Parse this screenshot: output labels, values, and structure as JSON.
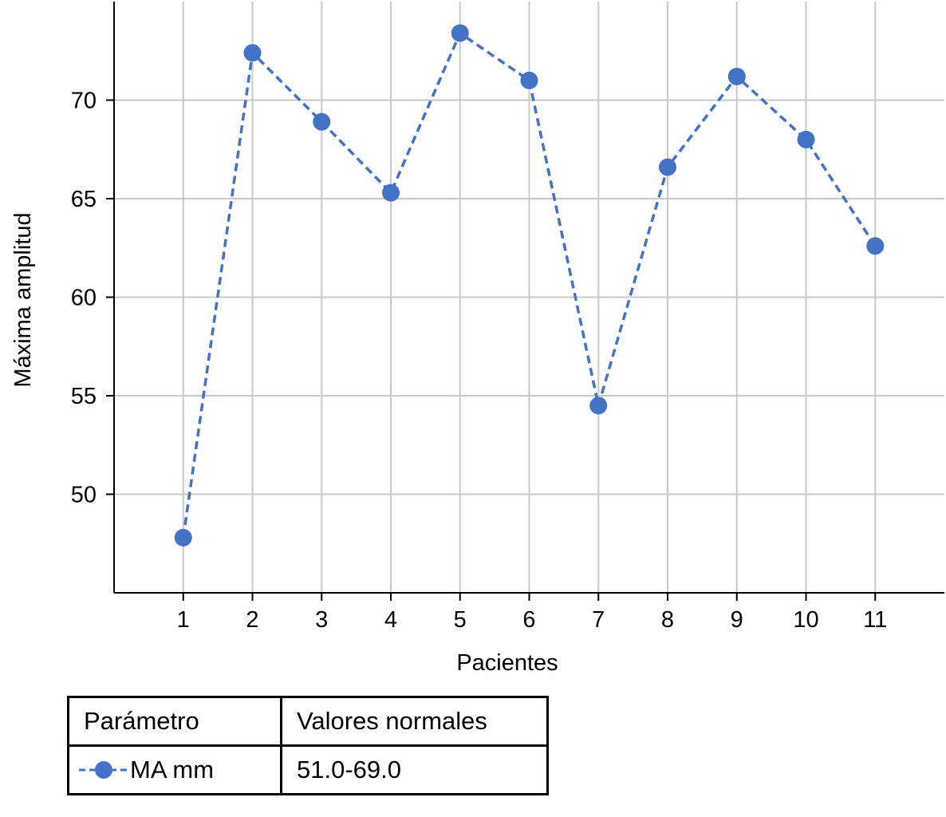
{
  "chart_data": {
    "type": "line",
    "x": [
      1,
      2,
      3,
      4,
      5,
      6,
      7,
      8,
      9,
      10,
      11
    ],
    "series": [
      {
        "name": "MA mm",
        "values": [
          47.8,
          72.4,
          68.9,
          65.3,
          73.4,
          71.0,
          54.5,
          66.6,
          71.2,
          68.0,
          62.6
        ]
      }
    ],
    "xlabel": "Pacientes",
    "ylabel": "Máxima amplitud",
    "xlim": [
      0,
      12
    ],
    "ylim": [
      45,
      75
    ],
    "xticks": [
      "1",
      "2",
      "3",
      "4",
      "5",
      "6",
      "7",
      "8",
      "9",
      "10",
      "11"
    ],
    "yticks": [
      "50",
      "55",
      "60",
      "65",
      "70"
    ],
    "grid": true,
    "line_style": "dashed",
    "marker": "circle",
    "color": "#4472C4"
  },
  "legend_table": {
    "headers": [
      "Parámetro",
      "Valores normales"
    ],
    "rows": [
      {
        "parameter": "MA mm",
        "normal_values": "51.0-69.0"
      }
    ]
  }
}
